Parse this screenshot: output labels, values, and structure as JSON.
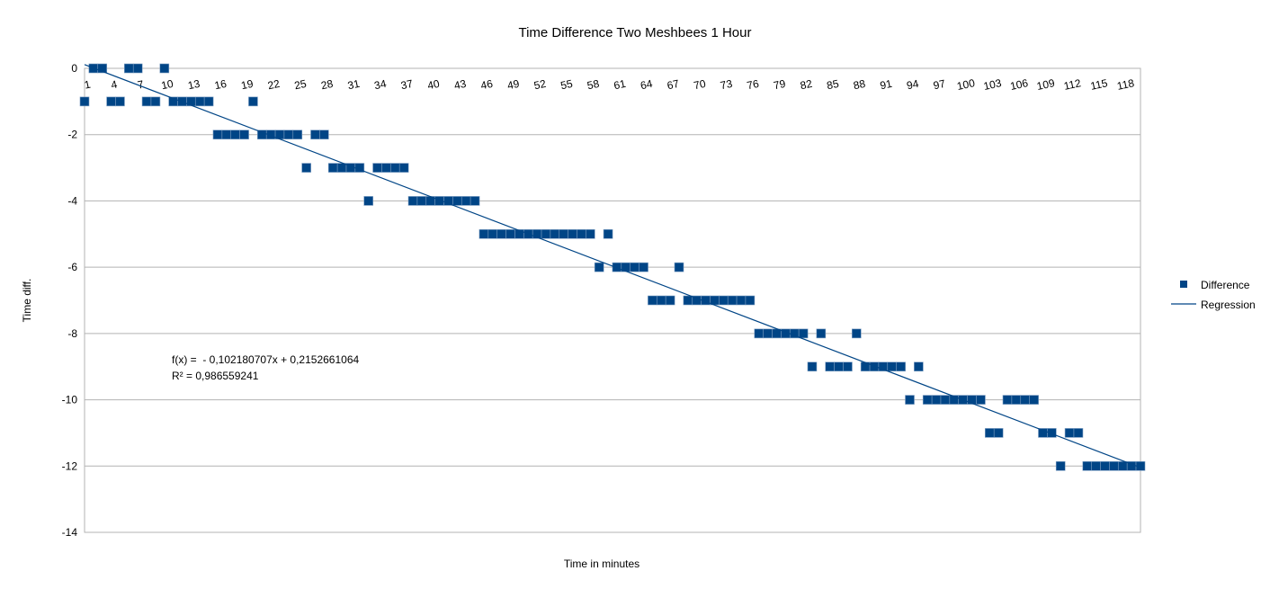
{
  "chart_data": {
    "type": "scatter",
    "title": "Time Difference Two Meshbees 1 Hour",
    "xlabel": "Time in minutes",
    "ylabel": "Time diff.",
    "ylim": [
      -14,
      0
    ],
    "y_ticks": [
      0,
      -2,
      -4,
      -6,
      -8,
      -10,
      -12,
      -14
    ],
    "xlim": [
      1,
      120
    ],
    "x_tick_labels": [
      "1",
      "4",
      "7",
      "10",
      "13",
      "16",
      "19",
      "22",
      "25",
      "28",
      "31",
      "34",
      "37",
      "40",
      "43",
      "46",
      "49",
      "52",
      "55",
      "58",
      "61",
      "64",
      "67",
      "70",
      "73",
      "76",
      "79",
      "82",
      "85",
      "88",
      "91",
      "94",
      "97",
      "100",
      "103",
      "106",
      "109",
      "112",
      "115",
      "118"
    ],
    "grid": "horizontal",
    "legend_position": "right",
    "series": [
      {
        "name": "Difference",
        "color": "#004586",
        "marker": "square",
        "x": [
          1,
          2,
          3,
          4,
          5,
          6,
          7,
          8,
          9,
          10,
          11,
          12,
          13,
          14,
          15,
          16,
          17,
          18,
          19,
          20,
          21,
          22,
          23,
          24,
          25,
          26,
          27,
          28,
          29,
          30,
          31,
          32,
          33,
          34,
          35,
          36,
          37,
          38,
          39,
          40,
          41,
          42,
          43,
          44,
          45,
          46,
          47,
          48,
          49,
          50,
          51,
          52,
          53,
          54,
          55,
          56,
          57,
          58,
          59,
          60,
          61,
          62,
          63,
          64,
          65,
          66,
          67,
          68,
          69,
          70,
          71,
          72,
          73,
          74,
          75,
          76,
          77,
          78,
          79,
          80,
          81,
          82,
          83,
          84,
          85,
          86,
          87,
          88,
          89,
          90,
          91,
          92,
          93,
          94,
          95,
          96,
          97,
          98,
          99,
          100,
          101,
          102,
          103,
          104,
          105,
          106,
          107,
          108,
          109,
          110,
          111,
          112,
          113,
          114,
          115,
          116,
          117,
          118,
          119,
          120
        ],
        "y": [
          -1,
          0,
          0,
          -1,
          -1,
          0,
          0,
          -1,
          -1,
          0,
          -1,
          -1,
          -1,
          -1,
          -1,
          -2,
          -2,
          -2,
          -2,
          -1,
          -2,
          -2,
          -2,
          -2,
          -2,
          -3,
          -2,
          -2,
          -3,
          -3,
          -3,
          -3,
          -4,
          -3,
          -3,
          -3,
          -3,
          -4,
          -4,
          -4,
          -4,
          -4,
          -4,
          -4,
          -4,
          -5,
          -5,
          -5,
          -5,
          -5,
          -5,
          -5,
          -5,
          -5,
          -5,
          -5,
          -5,
          -5,
          -6,
          -5,
          -6,
          -6,
          -6,
          -6,
          -7,
          -7,
          -7,
          -6,
          -7,
          -7,
          -7,
          -7,
          -7,
          -7,
          -7,
          -7,
          -8,
          -8,
          -8,
          -8,
          -8,
          -8,
          -9,
          -8,
          -9,
          -9,
          -9,
          -8,
          -9,
          -9,
          -9,
          -9,
          -9,
          -10,
          -9,
          -10,
          -10,
          -10,
          -10,
          -10,
          -10,
          -10,
          -11,
          -11,
          -10,
          -10,
          -10,
          -10,
          -11,
          -11,
          -12,
          -11,
          -11,
          -12,
          -12,
          -12,
          -12,
          -12,
          -12,
          -12
        ]
      },
      {
        "name": "Regression",
        "color": "#004586",
        "type": "line",
        "slope": -0.102180707,
        "intercept": 0.2152661064
      }
    ],
    "annotations": {
      "equation": "f(x) =  - 0,102180707x + 0,2152661064",
      "r_squared": "R² = 0,986559241"
    }
  }
}
